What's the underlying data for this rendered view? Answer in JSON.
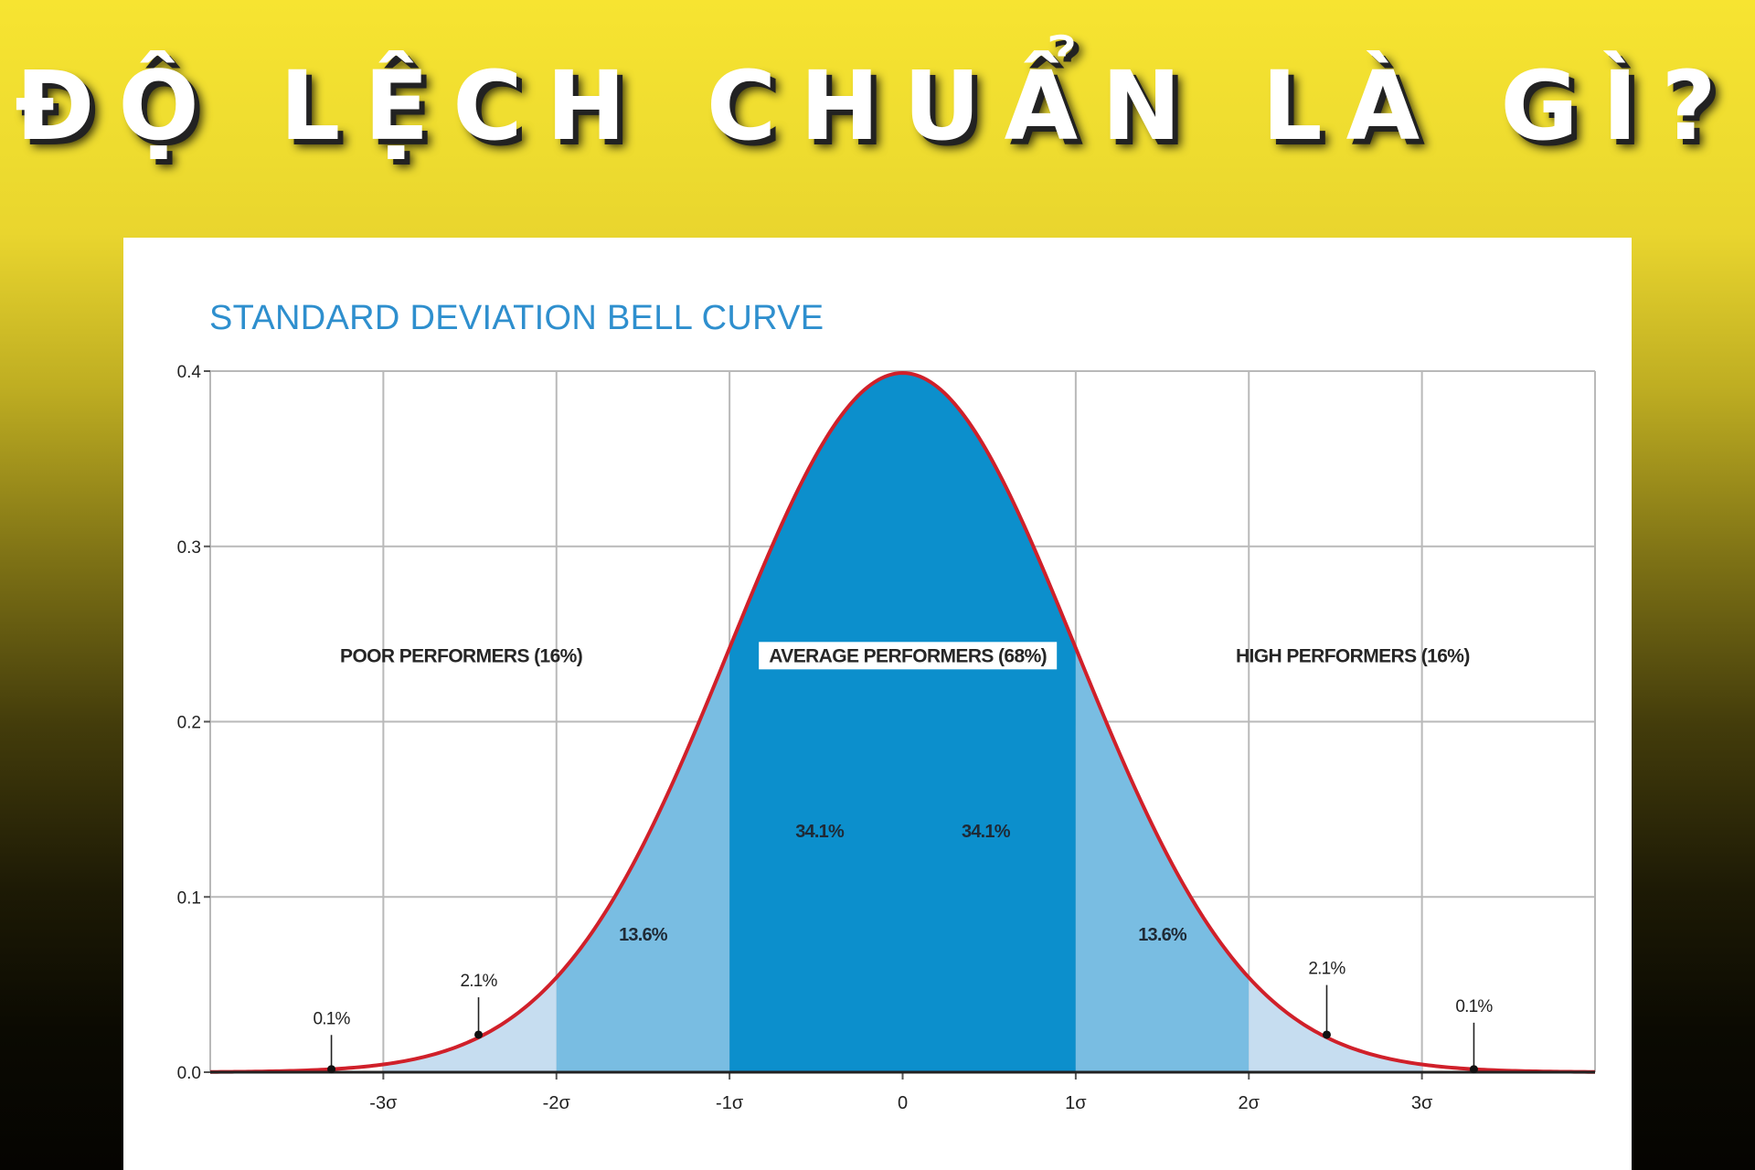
{
  "headline": "ĐỘ LỆCH CHUẨN LÀ GÌ?",
  "chart_data": {
    "type": "area",
    "title": "STANDARD DEVIATION BELL CURVE",
    "distribution": "normal",
    "mean": 0,
    "sd": 1,
    "xlim": [
      -4,
      4
    ],
    "ylim": [
      0,
      0.4
    ],
    "yticks": [
      "0.0",
      "0.1",
      "0.2",
      "0.3",
      "0.4"
    ],
    "ytick_values": [
      0,
      0.1,
      0.2,
      0.3,
      0.4
    ],
    "xticks": [
      "-3σ",
      "-2σ",
      "-1σ",
      "0",
      "1σ",
      "2σ",
      "3σ"
    ],
    "xtick_values": [
      -3,
      -2,
      -1,
      0,
      1,
      2,
      3
    ],
    "grid": true,
    "regions": [
      {
        "from": -3,
        "to": -2,
        "label": "2.1%",
        "color": "#c6ddf0"
      },
      {
        "from": -2,
        "to": -1,
        "label": "13.6%",
        "color": "#79bde2"
      },
      {
        "from": -1,
        "to": 0,
        "label": "34.1%",
        "color": "#0c8fcc"
      },
      {
        "from": 0,
        "to": 1,
        "label": "34.1%",
        "color": "#0c8fcc"
      },
      {
        "from": 1,
        "to": 2,
        "label": "13.6%",
        "color": "#79bde2"
      },
      {
        "from": 2,
        "to": 3,
        "label": "2.1%",
        "color": "#c6ddf0"
      }
    ],
    "tail_markers": [
      {
        "x": -3.3,
        "label": "0.1%"
      },
      {
        "x": -2.45,
        "label": "2.1%"
      },
      {
        "x": 2.45,
        "label": "2.1%"
      },
      {
        "x": 3.3,
        "label": "0.1%"
      }
    ],
    "groups": [
      {
        "label": "POOR PERFORMERS (16%)",
        "x": -2.55,
        "y": 0.234
      },
      {
        "label": "AVERAGE PERFORMERS (68%)",
        "x": 0.03,
        "y": 0.234
      },
      {
        "label": "HIGH PERFORMERS (16%)",
        "x": 2.6,
        "y": 0.234
      }
    ],
    "curve_color": "#d0202a"
  }
}
